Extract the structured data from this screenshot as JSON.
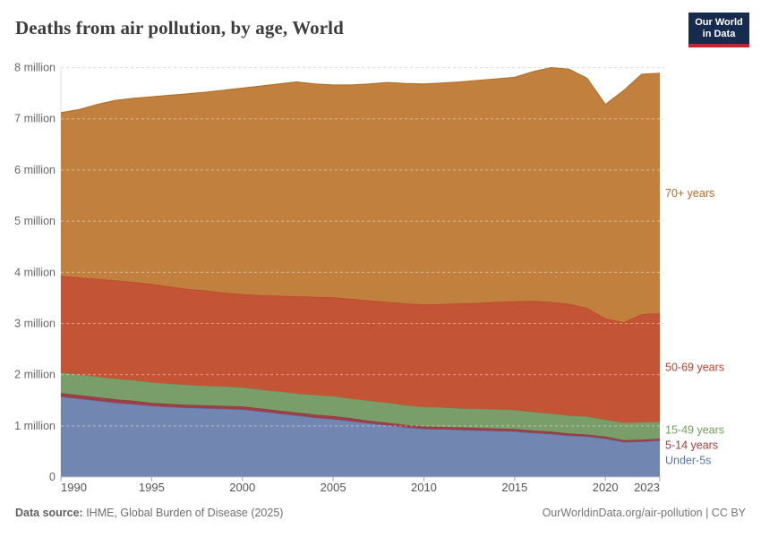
{
  "header": {
    "title": "Deaths from air pollution, by age, World"
  },
  "logo": {
    "line1": "Our World",
    "line2": "in Data",
    "bg_color": "#162b4d",
    "accent_color": "#c0262c"
  },
  "footer": {
    "source_label": "Data source:",
    "source_text": " IHME, Global Burden of Disease (2025)",
    "right_text": "OurWorldinData.org/air-pollution | CC BY"
  },
  "chart_data": {
    "type": "area",
    "stacked": true,
    "title": "Deaths from air pollution, by age, World",
    "unit": "deaths (millions)",
    "xlabel": "",
    "ylabel": "",
    "grid": "dashed-horizontal",
    "legend_position": "right-edge-labels",
    "xlim": [
      1990,
      2023
    ],
    "ylim": [
      0,
      8
    ],
    "xticks": [
      1990,
      1995,
      2000,
      2005,
      2010,
      2015,
      2020,
      2023
    ],
    "yticks": [
      {
        "value": 0,
        "label": "0"
      },
      {
        "value": 1,
        "label": "1 million"
      },
      {
        "value": 2,
        "label": "2 million"
      },
      {
        "value": 3,
        "label": "3 million"
      },
      {
        "value": 4,
        "label": "4 million"
      },
      {
        "value": 5,
        "label": "5 million"
      },
      {
        "value": 6,
        "label": "6 million"
      },
      {
        "value": 7,
        "label": "7 million"
      },
      {
        "value": 8,
        "label": "8 million"
      }
    ],
    "x": [
      1990,
      1991,
      1992,
      1993,
      1994,
      1995,
      1996,
      1997,
      1998,
      1999,
      2000,
      2001,
      2002,
      2003,
      2004,
      2005,
      2006,
      2007,
      2008,
      2009,
      2010,
      2011,
      2012,
      2013,
      2014,
      2015,
      2016,
      2017,
      2018,
      2019,
      2020,
      2021,
      2022,
      2023
    ],
    "series": [
      {
        "name": "Under-5s",
        "color": "#7187b1",
        "line_color": "#5677ae",
        "label_color": "#5677ae",
        "values": [
          1.57,
          1.53,
          1.49,
          1.45,
          1.42,
          1.39,
          1.37,
          1.35,
          1.34,
          1.33,
          1.32,
          1.28,
          1.24,
          1.2,
          1.16,
          1.13,
          1.09,
          1.05,
          1.01,
          0.97,
          0.94,
          0.93,
          0.92,
          0.91,
          0.9,
          0.89,
          0.86,
          0.84,
          0.81,
          0.79,
          0.75,
          0.68,
          0.69,
          0.71
        ]
      },
      {
        "name": "5-14 years",
        "color": "#9e3e46",
        "line_color": "#8e343e",
        "label_color": "#a23b3e",
        "values": [
          0.07,
          0.07,
          0.07,
          0.07,
          0.07,
          0.06,
          0.06,
          0.06,
          0.06,
          0.06,
          0.06,
          0.06,
          0.06,
          0.06,
          0.06,
          0.06,
          0.06,
          0.05,
          0.05,
          0.05,
          0.05,
          0.05,
          0.05,
          0.05,
          0.05,
          0.05,
          0.05,
          0.05,
          0.04,
          0.04,
          0.04,
          0.04,
          0.04,
          0.04
        ]
      },
      {
        "name": "15-49 years",
        "color": "#7a9e69",
        "line_color": "#6a9455",
        "label_color": "#6ea05a",
        "values": [
          0.4,
          0.4,
          0.4,
          0.4,
          0.4,
          0.4,
          0.39,
          0.39,
          0.38,
          0.38,
          0.37,
          0.37,
          0.37,
          0.37,
          0.38,
          0.39,
          0.38,
          0.39,
          0.39,
          0.38,
          0.38,
          0.38,
          0.37,
          0.37,
          0.37,
          0.37,
          0.36,
          0.35,
          0.35,
          0.35,
          0.33,
          0.34,
          0.34,
          0.33
        ]
      },
      {
        "name": "50-69 years",
        "color": "#c45436",
        "line_color": "#b33d26",
        "label_color": "#c13e2b",
        "values": [
          1.89,
          1.9,
          1.91,
          1.92,
          1.92,
          1.92,
          1.9,
          1.87,
          1.86,
          1.83,
          1.82,
          1.84,
          1.87,
          1.9,
          1.92,
          1.93,
          1.95,
          1.96,
          1.97,
          1.99,
          2.0,
          2.02,
          2.05,
          2.07,
          2.1,
          2.12,
          2.17,
          2.18,
          2.18,
          2.12,
          1.98,
          1.96,
          2.11,
          2.12
        ]
      },
      {
        "name": "70+ years",
        "color": "#c2803e",
        "line_color": "#b06c24",
        "label_color": "#b26a27",
        "values": [
          3.19,
          3.28,
          3.41,
          3.52,
          3.59,
          3.66,
          3.74,
          3.82,
          3.88,
          3.96,
          4.03,
          4.09,
          4.14,
          4.19,
          4.16,
          4.15,
          4.18,
          4.23,
          4.29,
          4.3,
          4.31,
          4.32,
          4.33,
          4.35,
          4.36,
          4.38,
          4.48,
          4.58,
          4.59,
          4.49,
          4.18,
          4.53,
          4.69,
          4.69
        ]
      }
    ]
  }
}
